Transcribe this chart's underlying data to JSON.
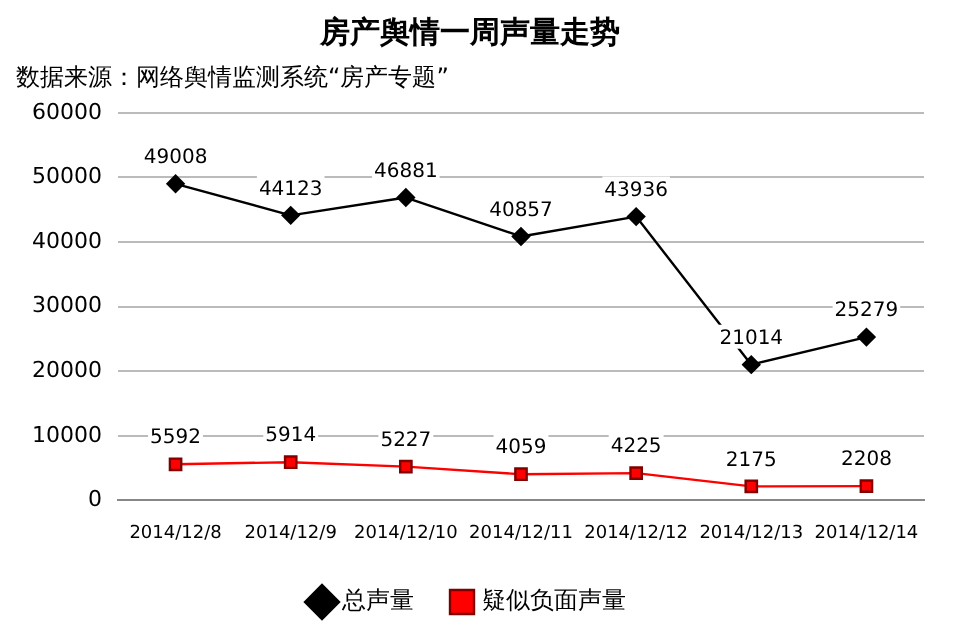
{
  "chart_data": {
    "type": "line",
    "title": "房产舆情一周声量走势",
    "subtitle": "数据来源：网络舆情监测系统“房产专题”",
    "categories": [
      "2014/12/8",
      "2014/12/9",
      "2014/12/10",
      "2014/12/11",
      "2014/12/12",
      "2014/12/13",
      "2014/12/14"
    ],
    "series": [
      {
        "name": "总声量",
        "color": "#000000",
        "marker": "diamond",
        "values": [
          49008,
          44123,
          46881,
          40857,
          43936,
          21014,
          25279
        ]
      },
      {
        "name": "疑似负面声量",
        "color": "#ff0000",
        "marker": "square",
        "values": [
          5592,
          5914,
          5227,
          4059,
          4225,
          2175,
          2208
        ]
      }
    ],
    "ylim": [
      0,
      60000
    ],
    "yticks": [
      0,
      10000,
      20000,
      30000,
      40000,
      50000,
      60000
    ],
    "grid": "y",
    "legend": "bottom",
    "data_labels": true,
    "line_style": "solid"
  }
}
